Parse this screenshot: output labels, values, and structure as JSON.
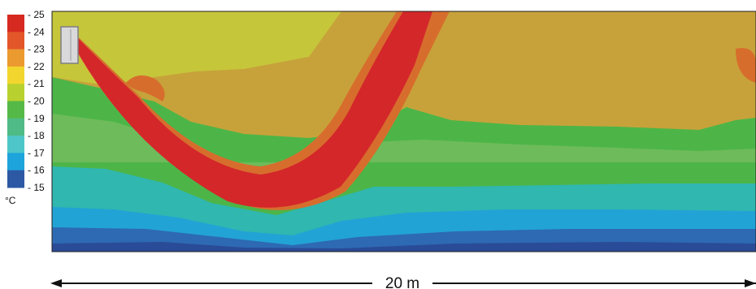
{
  "legend": {
    "unit": "°C",
    "ticks": [
      "25",
      "24",
      "23",
      "22",
      "21",
      "20",
      "19",
      "18",
      "17",
      "16",
      "15"
    ],
    "bands": [
      {
        "range": "24-25",
        "color": "#d62a20"
      },
      {
        "range": "23-24",
        "color": "#e3562a"
      },
      {
        "range": "22-23",
        "color": "#eb9a2f"
      },
      {
        "range": "21-22",
        "color": "#f2d62d"
      },
      {
        "range": "20-21",
        "color": "#b8d12f"
      },
      {
        "range": "19-20",
        "color": "#55b947"
      },
      {
        "range": "18-19",
        "color": "#4fbb86"
      },
      {
        "range": "17-18",
        "color": "#4ec6c9"
      },
      {
        "range": "16-17",
        "color": "#1ea4dc"
      },
      {
        "range": "15-16",
        "color": "#2d58a3"
      }
    ]
  },
  "field_colors": {
    "upper_air": "#c7a23a",
    "upper_left_air": "#c6c63b",
    "jet_core": "#d4272a",
    "jet_edge": "#d76d2d",
    "green": "#4db548",
    "light_green": "#6dbb5a",
    "teal": "#2fb7b0",
    "cyan": "#22a3d5",
    "blue": "#2d6ab3",
    "deep_blue": "#2a4b97"
  },
  "dimension": {
    "label": "20 m"
  },
  "icons": {
    "diffuser": "wall-mounted-air-terminal"
  }
}
